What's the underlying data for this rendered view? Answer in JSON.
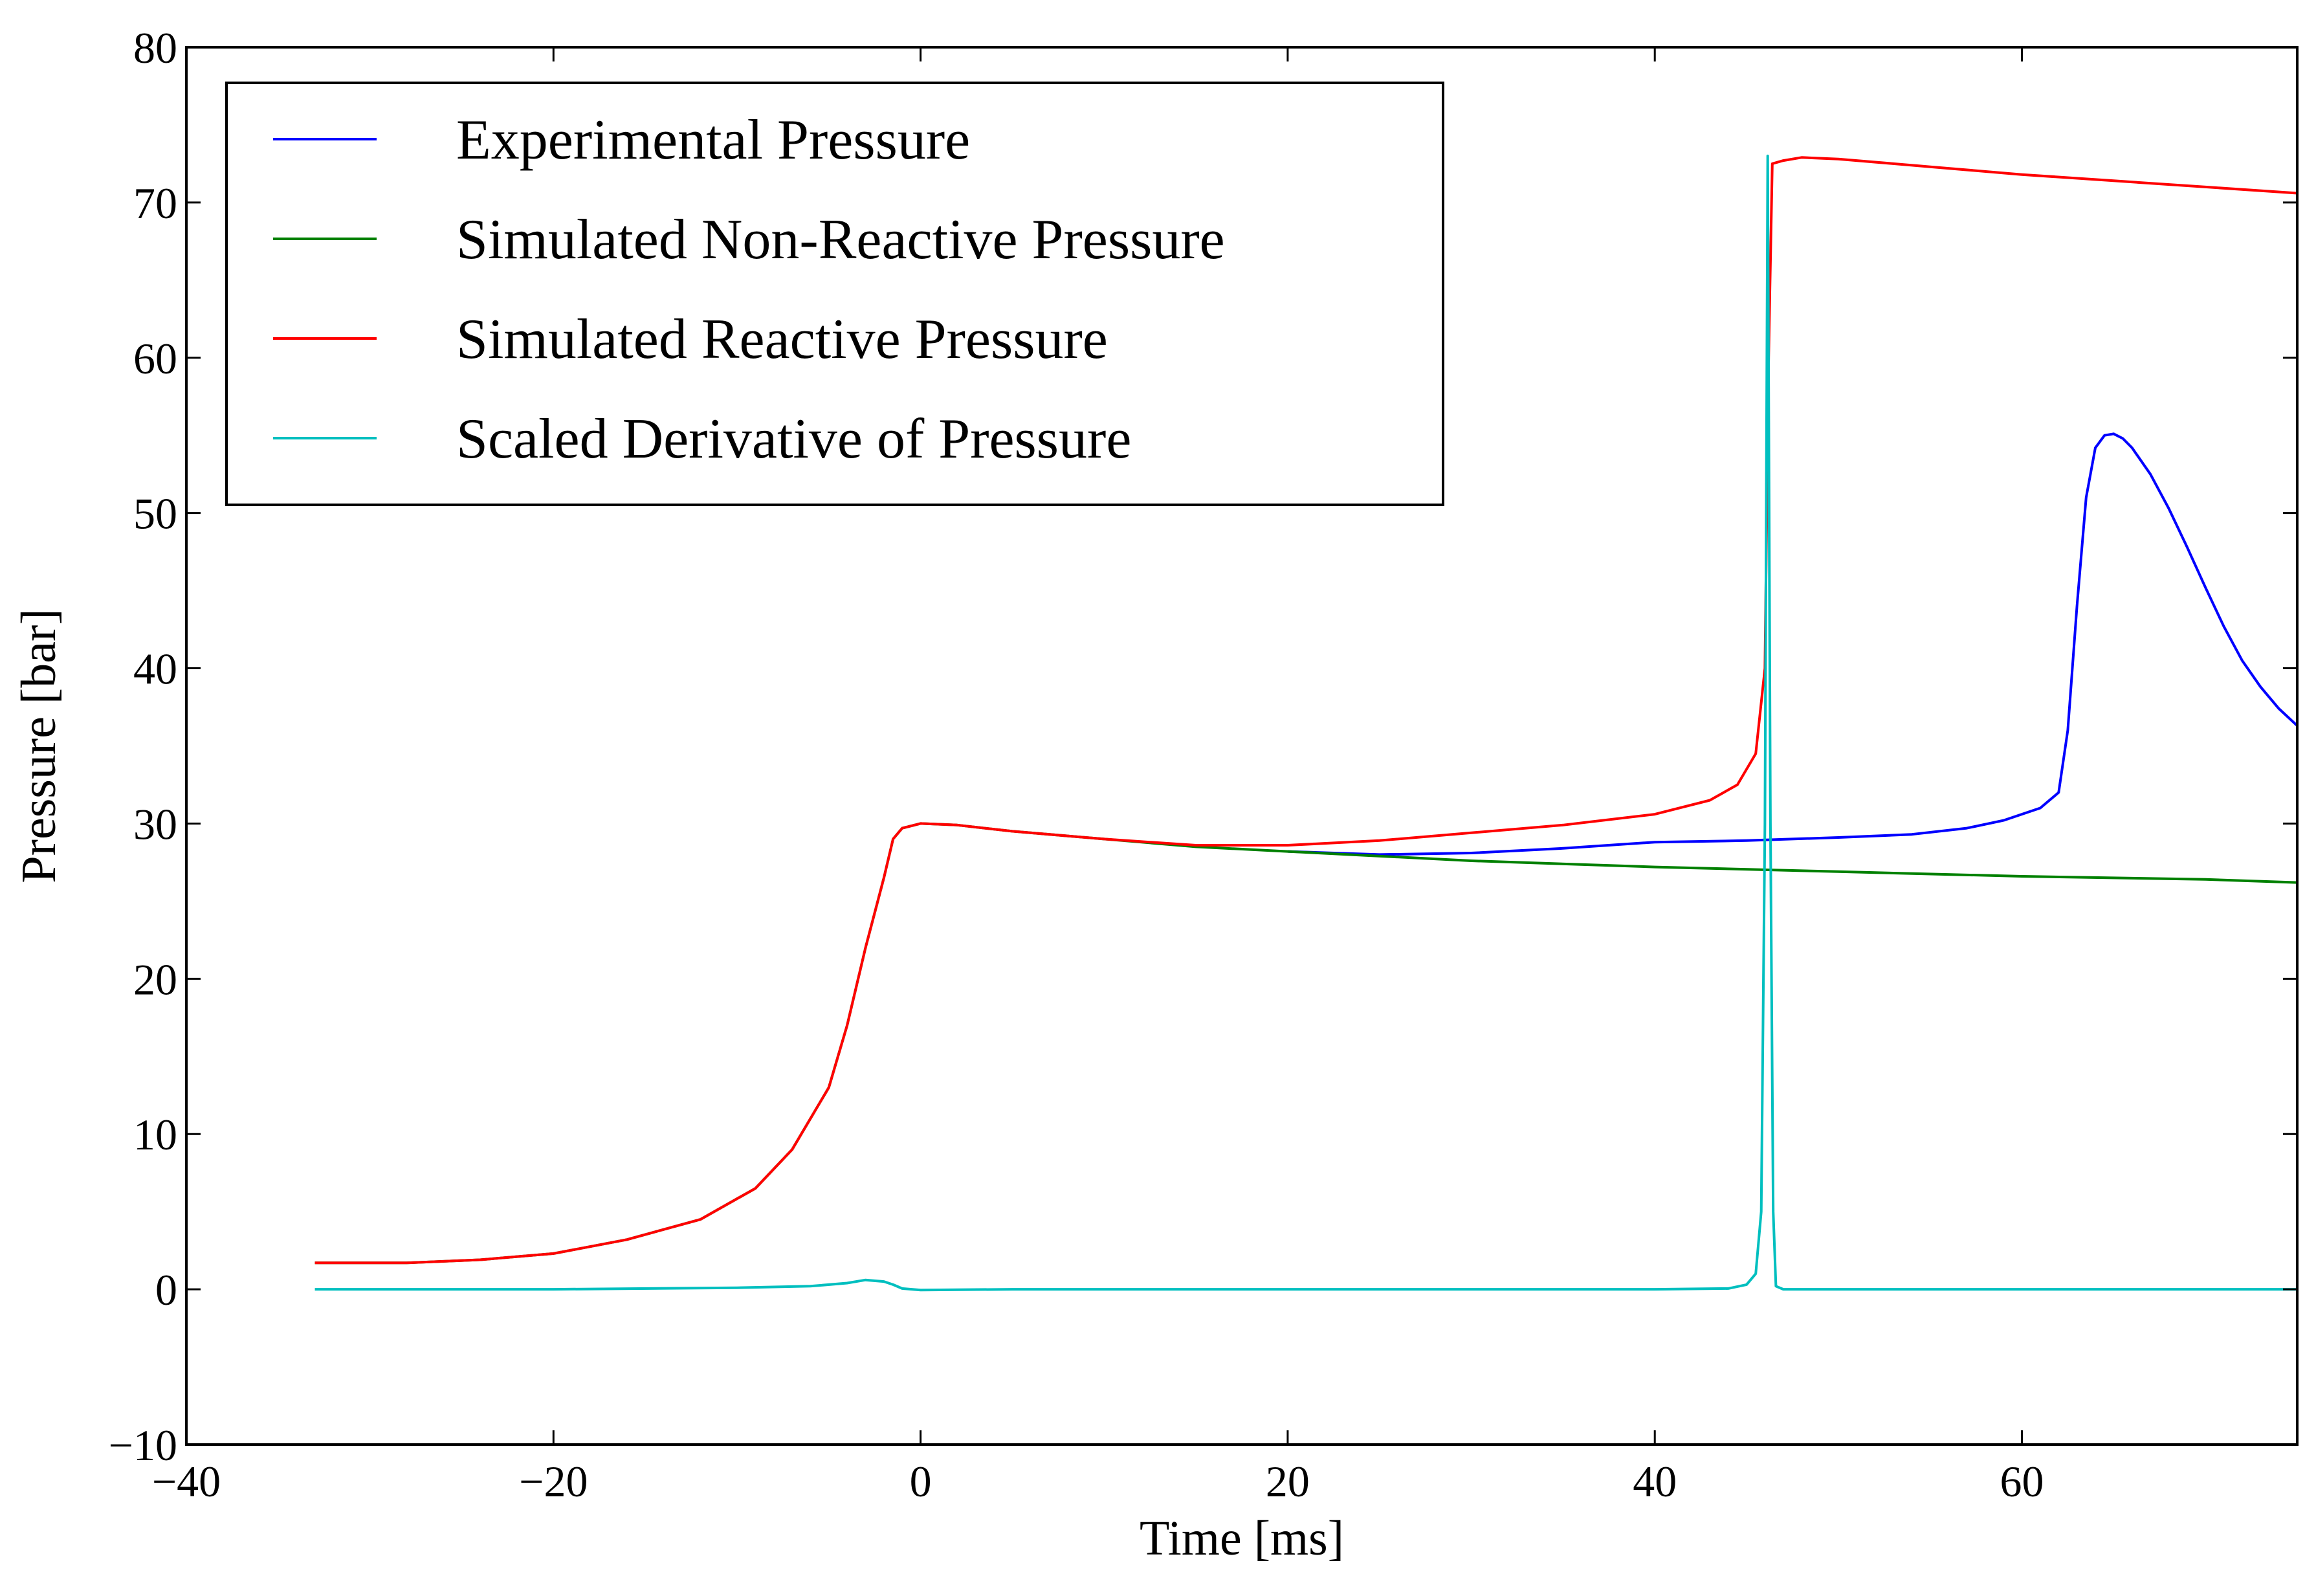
{
  "chart_data": {
    "type": "line",
    "title": "",
    "xlabel": "Time [ms]",
    "ylabel": "Pressure [bar]",
    "xlim": [
      -40,
      75
    ],
    "ylim": [
      -10,
      80
    ],
    "x_ticks": [
      -40,
      -20,
      0,
      20,
      40,
      60
    ],
    "y_ticks": [
      -10,
      0,
      10,
      20,
      30,
      40,
      50,
      60,
      70,
      80
    ],
    "x_tick_labels": [
      "−40",
      "−20",
      "0",
      "20",
      "40",
      "60"
    ],
    "y_tick_labels": [
      "−10",
      "0",
      "10",
      "20",
      "30",
      "40",
      "50",
      "60",
      "70",
      "80"
    ],
    "grid": false,
    "legend_position": "top-left",
    "series": [
      {
        "name": "Experimental Pressure",
        "color": "#0000ff",
        "points": [
          [
            20,
            28.2
          ],
          [
            25,
            28.0
          ],
          [
            30,
            28.1
          ],
          [
            35,
            28.4
          ],
          [
            40,
            28.8
          ],
          [
            45,
            28.9
          ],
          [
            50,
            29.1
          ],
          [
            54,
            29.3
          ],
          [
            57,
            29.7
          ],
          [
            59,
            30.2
          ],
          [
            61,
            31.0
          ],
          [
            62,
            32.0
          ],
          [
            62.5,
            36
          ],
          [
            63,
            44
          ],
          [
            63.5,
            51
          ],
          [
            64,
            54.2
          ],
          [
            64.5,
            55.0
          ],
          [
            65,
            55.1
          ],
          [
            65.5,
            54.8
          ],
          [
            66,
            54.2
          ],
          [
            67,
            52.5
          ],
          [
            68,
            50.3
          ],
          [
            69,
            47.8
          ],
          [
            70,
            45.2
          ],
          [
            71,
            42.7
          ],
          [
            72,
            40.5
          ],
          [
            73,
            38.8
          ],
          [
            74,
            37.4
          ],
          [
            75,
            36.3
          ]
        ]
      },
      {
        "name": "Simulated Non-Reactive Pressure",
        "color": "#008000",
        "points": [
          [
            -33,
            1.7
          ],
          [
            -28,
            1.7
          ],
          [
            -24,
            1.9
          ],
          [
            -20,
            2.3
          ],
          [
            -16,
            3.2
          ],
          [
            -12,
            4.5
          ],
          [
            -9,
            6.5
          ],
          [
            -7,
            9.0
          ],
          [
            -5,
            13.0
          ],
          [
            -4,
            17.0
          ],
          [
            -3,
            22.0
          ],
          [
            -2,
            26.5
          ],
          [
            -1.5,
            29.0
          ],
          [
            -1,
            29.7
          ],
          [
            0,
            30.0
          ],
          [
            2,
            29.9
          ],
          [
            5,
            29.5
          ],
          [
            10,
            29.0
          ],
          [
            15,
            28.5
          ],
          [
            20,
            28.2
          ],
          [
            30,
            27.6
          ],
          [
            40,
            27.2
          ],
          [
            50,
            26.9
          ],
          [
            60,
            26.6
          ],
          [
            70,
            26.4
          ],
          [
            75,
            26.2
          ]
        ]
      },
      {
        "name": "Simulated Reactive Pressure",
        "color": "#ff0000",
        "points": [
          [
            -33,
            1.7
          ],
          [
            -28,
            1.7
          ],
          [
            -24,
            1.9
          ],
          [
            -20,
            2.3
          ],
          [
            -16,
            3.2
          ],
          [
            -12,
            4.5
          ],
          [
            -9,
            6.5
          ],
          [
            -7,
            9.0
          ],
          [
            -5,
            13.0
          ],
          [
            -4,
            17.0
          ],
          [
            -3,
            22.0
          ],
          [
            -2,
            26.5
          ],
          [
            -1.5,
            29.0
          ],
          [
            -1,
            29.7
          ],
          [
            0,
            30.0
          ],
          [
            2,
            29.9
          ],
          [
            5,
            29.5
          ],
          [
            10,
            29.0
          ],
          [
            15,
            28.6
          ],
          [
            20,
            28.6
          ],
          [
            25,
            28.9
          ],
          [
            30,
            29.4
          ],
          [
            35,
            29.9
          ],
          [
            40,
            30.6
          ],
          [
            43,
            31.5
          ],
          [
            44.5,
            32.5
          ],
          [
            45.5,
            34.5
          ],
          [
            46,
            40
          ],
          [
            46.2,
            60
          ],
          [
            46.4,
            72.5
          ],
          [
            47,
            72.7
          ],
          [
            48,
            72.9
          ],
          [
            50,
            72.8
          ],
          [
            55,
            72.3
          ],
          [
            60,
            71.8
          ],
          [
            65,
            71.4
          ],
          [
            70,
            71.0
          ],
          [
            75,
            70.6
          ]
        ]
      },
      {
        "name": "Scaled Derivative of Pressure",
        "color": "#00bfbf",
        "points": [
          [
            -33,
            0
          ],
          [
            -20,
            0
          ],
          [
            -10,
            0.1
          ],
          [
            -6,
            0.2
          ],
          [
            -4,
            0.4
          ],
          [
            -3,
            0.6
          ],
          [
            -2,
            0.5
          ],
          [
            -1.5,
            0.3
          ],
          [
            -1,
            0.05
          ],
          [
            0,
            -0.05
          ],
          [
            5,
            0
          ],
          [
            20,
            0
          ],
          [
            40,
            0
          ],
          [
            44,
            0.05
          ],
          [
            45,
            0.3
          ],
          [
            45.5,
            1.0
          ],
          [
            45.8,
            5
          ],
          [
            46,
            30
          ],
          [
            46.15,
            73
          ],
          [
            46.3,
            30
          ],
          [
            46.45,
            5
          ],
          [
            46.6,
            0.2
          ],
          [
            47,
            0
          ],
          [
            55,
            0
          ],
          [
            65,
            0
          ],
          [
            75,
            0
          ]
        ]
      }
    ]
  }
}
